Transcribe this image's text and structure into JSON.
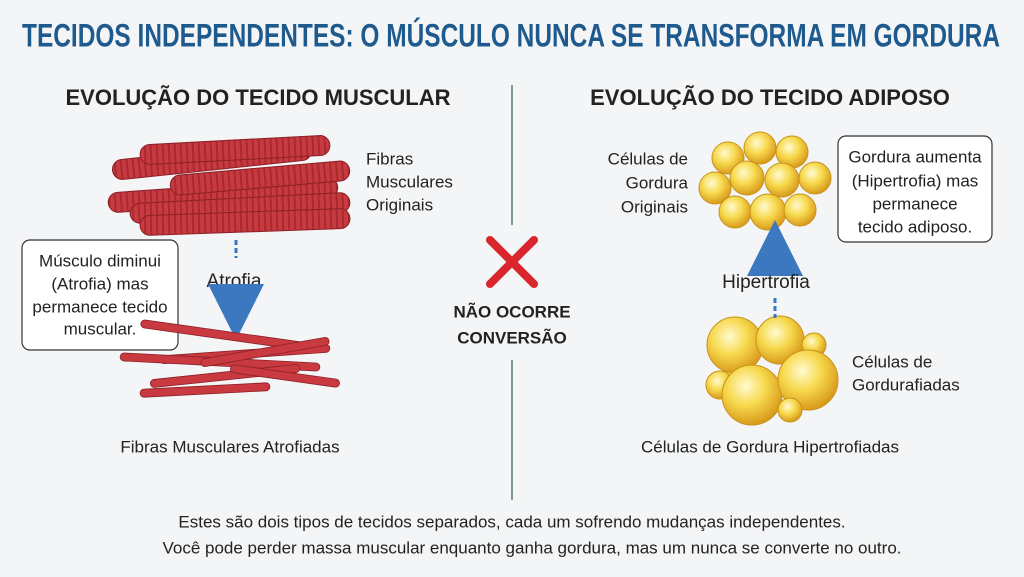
{
  "title": "TECIDOS INDEPENDENTES: O MÚSCULO NUNCA SE TRANSFORMA EM GORDURA",
  "left": {
    "heading": "EVOLUÇÃO DO TECIDO MUSCULAR",
    "top_label": [
      "Fibras",
      "Musculares",
      "Originais"
    ],
    "callout": [
      "Músculo diminui",
      "(Atrofia) mas",
      "permanece tecido",
      "muscular."
    ],
    "arrow_label": "Atrofia",
    "bottom_label": "Fibras Musculares Atrofiadas"
  },
  "center": {
    "label": [
      "NÃO OCORRE",
      "CONVERSÃO"
    ]
  },
  "right": {
    "heading": "EVOLUÇÃO DO TECIDO ADIPOSO",
    "top_label": [
      "Células de",
      "Gordura",
      "Originais"
    ],
    "callout": [
      "Gordura aumenta",
      "(Hipertrofia) mas",
      "permanece",
      "tecido adiposo."
    ],
    "arrow_label": "Hipertrofia",
    "side_label": [
      "Células de",
      "Gordurafiadas"
    ],
    "bottom_label": "Células de Gordura Hipertrofiadas"
  },
  "footer": [
    "Estes são dois tipos de tecidos separados, cada um sofrendo mudanças independentes.",
    "Você pode perder massa muscular enquanto ganha gordura, mas um nunca se converte no outro."
  ]
}
